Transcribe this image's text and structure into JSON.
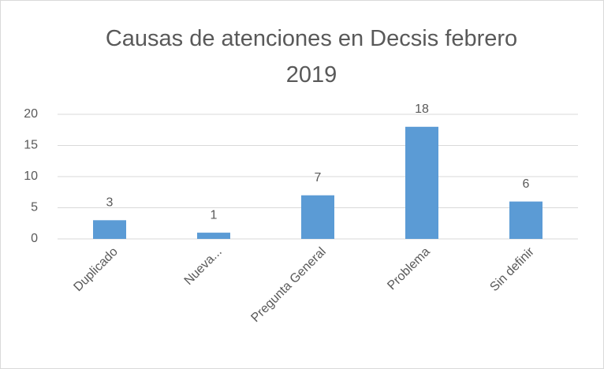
{
  "chart_data": {
    "type": "bar",
    "title": "Causas de atenciones en Decsis febrero 2019",
    "categories": [
      "Duplicado",
      "Nueva...",
      "Pregunta General",
      "Problema",
      "Sin definir"
    ],
    "values": [
      3,
      1,
      7,
      18,
      6
    ],
    "color": "#5b9bd5",
    "ylim": [
      0,
      20
    ],
    "yticks": [
      0,
      5,
      10,
      15,
      20
    ],
    "grid": true
  }
}
